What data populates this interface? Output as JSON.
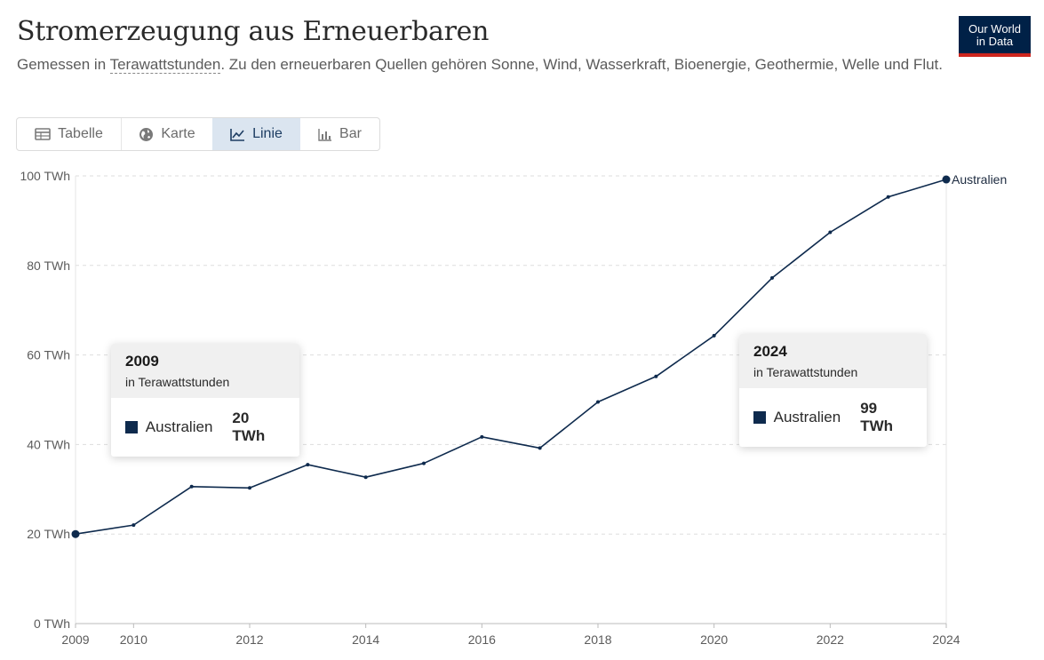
{
  "header": {
    "title": "Stromerzeugung aus Erneuerbaren",
    "subtitle_before": "Gemessen in ",
    "subtitle_link": "Terawattstunden",
    "subtitle_after": ". Zu den erneuerbaren Quellen gehören Sonne, Wind, Wasserkraft, Bioenergie, Geothermie, Welle und Flut.",
    "logo_line1": "Our World",
    "logo_line2": "in Data"
  },
  "tabs": [
    {
      "label": "Tabelle",
      "icon": "table-icon",
      "active": false
    },
    {
      "label": "Karte",
      "icon": "globe-icon",
      "active": false
    },
    {
      "label": "Linie",
      "icon": "line-chart-icon",
      "active": true
    },
    {
      "label": "Bar",
      "icon": "bar-chart-icon",
      "active": false
    }
  ],
  "tooltips": {
    "left": {
      "year": "2009",
      "unit": "in Terawattstunden",
      "series": "Australien",
      "value": "20 TWh"
    },
    "right": {
      "year": "2024",
      "unit": "in Terawattstunden",
      "series": "Australien",
      "value": "99 TWh"
    }
  },
  "colors": {
    "line": "#0e2a4d",
    "grid": "#dddddd",
    "axis": "#bbbbbb",
    "active_tab": "#dbe5f0"
  },
  "chart_data": {
    "type": "line",
    "title": "Stromerzeugung aus Erneuerbaren",
    "xlabel": "",
    "ylabel": "",
    "x": [
      2009,
      2010,
      2011,
      2012,
      2013,
      2014,
      2015,
      2016,
      2017,
      2018,
      2019,
      2020,
      2021,
      2022,
      2023,
      2024
    ],
    "series": [
      {
        "name": "Australien",
        "values": [
          20.0,
          22.0,
          30.6,
          30.3,
          35.5,
          32.7,
          35.8,
          41.7,
          39.2,
          49.5,
          55.2,
          64.3,
          77.2,
          87.4,
          95.3,
          99.2
        ]
      }
    ],
    "xticks": [
      {
        "value": 2009,
        "label": "2009"
      },
      {
        "value": 2010,
        "label": "2010"
      },
      {
        "value": 2012,
        "label": "2012"
      },
      {
        "value": 2014,
        "label": "2014"
      },
      {
        "value": 2016,
        "label": "2016"
      },
      {
        "value": 2018,
        "label": "2018"
      },
      {
        "value": 2020,
        "label": "2020"
      },
      {
        "value": 2022,
        "label": "2022"
      },
      {
        "value": 2024,
        "label": "2024"
      }
    ],
    "yticks": [
      {
        "value": 0,
        "label": "0 TWh"
      },
      {
        "value": 20,
        "label": "20 TWh"
      },
      {
        "value": 40,
        "label": "40 TWh"
      },
      {
        "value": 60,
        "label": "60 TWh"
      },
      {
        "value": 80,
        "label": "80 TWh"
      },
      {
        "value": 100,
        "label": "100 TWh"
      }
    ],
    "xlim": [
      2009,
      2024
    ],
    "ylim": [
      0,
      100
    ],
    "grid": true,
    "series_label": "Australien"
  }
}
